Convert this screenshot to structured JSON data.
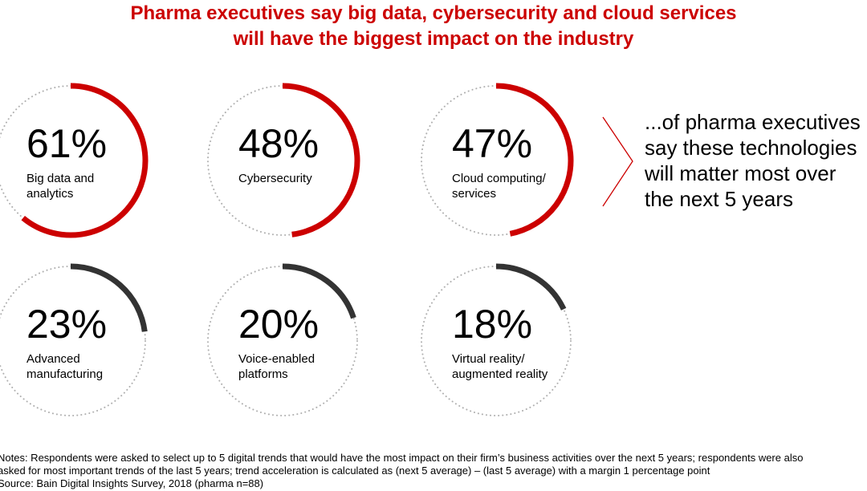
{
  "chart_data": {
    "type": "gauge",
    "title": [
      "Pharma executives say big data, cybersecurity and cloud services",
      "will have the biggest impact on the industry"
    ],
    "title_color": "#cc0000",
    "values": [
      61,
      48,
      47,
      23,
      20,
      18
    ],
    "value_labels": [
      "61%",
      "48%",
      "47%",
      "23%",
      "20%",
      "18%"
    ],
    "categories": [
      [
        "Big data and",
        "analytics"
      ],
      [
        "Cybersecurity"
      ],
      [
        "Cloud computing/",
        "services"
      ],
      [
        "Advanced",
        "manufacturing"
      ],
      [
        "Voice-enabled",
        "platforms"
      ],
      [
        "Virtual reality/",
        "augmented reality"
      ]
    ],
    "colors": [
      "#cc0000",
      "#cc0000",
      "#cc0000",
      "#333333",
      "#333333",
      "#333333"
    ],
    "track_color": "#b0b0b0",
    "callout": [
      "...of pharma executives",
      "say these technologies",
      "will matter most over",
      "the next 5 years"
    ],
    "notes": [
      "Notes: Respondents were asked to select up to 5 digital trends that would have the most impact on their firm’s business activities over the next 5 years; respondents were also",
      "asked for most important trends of the last 5 years; trend acceleration is calculated as (next 5 average) – (last 5 average) with a margin 1 percentage point"
    ],
    "source": "Source: Bain Digital Insights Survey, 2018 (pharma n=88)"
  }
}
